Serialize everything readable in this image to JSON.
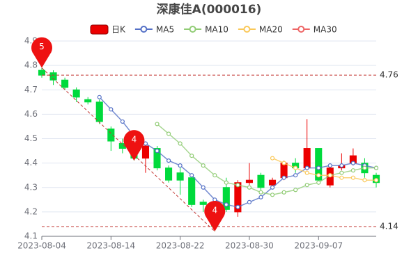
{
  "chart_data": {
    "type": "candlestick",
    "title": "深康佳A(000016)",
    "categories": [
      "2023-08-04",
      null,
      null,
      null,
      null,
      null,
      "2023-08-14",
      null,
      null,
      null,
      null,
      null,
      "2023-08-22",
      null,
      null,
      null,
      null,
      null,
      "2023-08-30",
      null,
      null,
      null,
      null,
      null,
      "2023-09-07",
      null,
      null,
      null,
      null,
      null
    ],
    "ylim": [
      4.1,
      4.9
    ],
    "yticks": [
      4.1,
      4.2,
      4.3,
      4.4,
      4.5,
      4.6,
      4.7,
      4.8,
      4.9
    ],
    "grid": true,
    "up_color": "#ec0000",
    "down_color": "#00da3c",
    "series": [
      {
        "name": "日K",
        "type": "candlestick",
        "color": "#ec0000",
        "open": [
          4.78,
          4.77,
          4.74,
          4.7,
          4.66,
          4.65,
          4.54,
          4.48,
          4.44,
          4.42,
          4.46,
          4.38,
          4.36,
          4.34,
          4.24,
          4.19,
          4.3,
          4.2,
          4.32,
          4.35,
          4.31,
          4.34,
          4.4,
          4.38,
          4.46,
          4.31,
          4.38,
          4.4,
          4.4,
          4.35
        ],
        "close": [
          4.76,
          4.74,
          4.71,
          4.67,
          4.65,
          4.57,
          4.49,
          4.46,
          4.42,
          4.47,
          4.38,
          4.33,
          4.33,
          4.23,
          4.23,
          4.14,
          4.21,
          4.32,
          4.33,
          4.3,
          4.33,
          4.4,
          4.38,
          4.46,
          4.33,
          4.38,
          4.39,
          4.43,
          4.36,
          4.32
        ],
        "high": [
          4.79,
          4.78,
          4.75,
          4.71,
          4.67,
          4.66,
          4.55,
          4.5,
          4.46,
          4.48,
          4.47,
          4.39,
          4.38,
          4.35,
          4.25,
          4.2,
          4.34,
          4.33,
          4.4,
          4.36,
          4.34,
          4.41,
          4.42,
          4.58,
          4.46,
          4.39,
          4.44,
          4.46,
          4.42,
          4.36
        ],
        "low": [
          4.75,
          4.72,
          4.7,
          4.65,
          4.64,
          4.56,
          4.45,
          4.44,
          4.41,
          4.36,
          4.37,
          4.32,
          4.27,
          4.22,
          4.2,
          4.12,
          4.2,
          4.18,
          4.31,
          4.29,
          4.3,
          4.33,
          4.36,
          4.37,
          4.32,
          4.3,
          4.37,
          4.39,
          4.34,
          4.3
        ]
      },
      {
        "name": "MA5",
        "type": "line",
        "color": "#5470c6",
        "values": [
          null,
          null,
          null,
          null,
          null,
          4.67,
          4.62,
          4.57,
          4.51,
          4.48,
          4.45,
          4.41,
          4.39,
          4.35,
          4.3,
          4.25,
          4.23,
          4.22,
          4.24,
          4.26,
          4.3,
          4.34,
          4.35,
          4.38,
          4.38,
          4.39,
          4.39,
          4.4,
          4.39,
          4.38
        ]
      },
      {
        "name": "MA10",
        "type": "line",
        "color": "#91cc75",
        "values": [
          null,
          null,
          null,
          null,
          null,
          null,
          null,
          null,
          null,
          null,
          4.56,
          4.52,
          4.48,
          4.43,
          4.39,
          4.35,
          4.32,
          4.31,
          4.3,
          4.28,
          4.27,
          4.28,
          4.29,
          4.31,
          4.32,
          4.35,
          4.36,
          4.37,
          4.38,
          4.38
        ]
      },
      {
        "name": "MA20",
        "type": "line",
        "color": "#fac858",
        "values": [
          null,
          null,
          null,
          null,
          null,
          null,
          null,
          null,
          null,
          null,
          null,
          null,
          null,
          null,
          null,
          null,
          null,
          null,
          null,
          null,
          4.42,
          4.4,
          4.38,
          4.36,
          4.35,
          4.35,
          4.34,
          4.34,
          4.33,
          4.33
        ]
      },
      {
        "name": "MA30",
        "type": "line",
        "color": "#ee6666",
        "values": [
          null,
          null,
          null,
          null,
          null,
          null,
          null,
          null,
          null,
          null,
          null,
          null,
          null,
          null,
          null,
          null,
          null,
          null,
          null,
          null,
          null,
          null,
          null,
          null,
          null,
          null,
          null,
          null,
          null,
          null
        ]
      }
    ],
    "mark_lines": [
      4.76,
      4.14
    ],
    "mark_points": [
      {
        "label": "5",
        "index": 0,
        "value": 4.79
      },
      {
        "label": "4",
        "index": 8,
        "value": 4.41
      },
      {
        "label": "4",
        "index": 15,
        "value": 4.12
      }
    ]
  }
}
